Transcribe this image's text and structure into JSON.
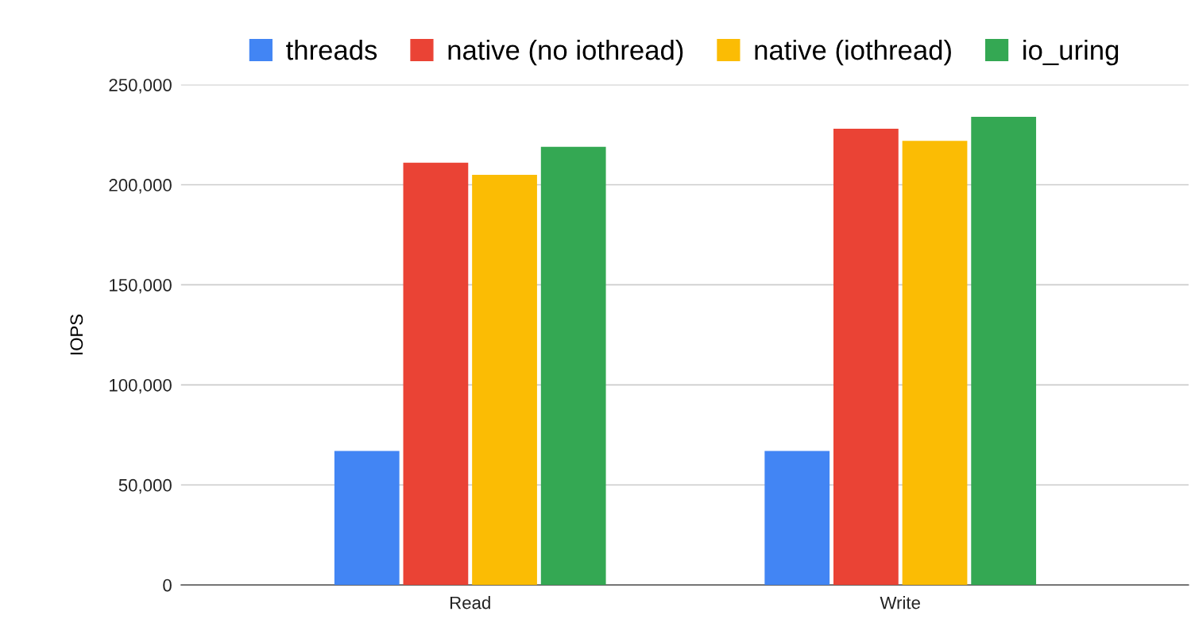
{
  "chart_data": {
    "type": "bar",
    "ylabel": "IOPS",
    "categories": [
      "Read",
      "Write"
    ],
    "series": [
      {
        "name": "threads",
        "color": "#4285f4",
        "values": [
          67000,
          67000
        ]
      },
      {
        "name": "native (no iothread)",
        "color": "#ea4335",
        "values": [
          211000,
          228000
        ]
      },
      {
        "name": "native (iothread)",
        "color": "#fbbc04",
        "values": [
          205000,
          222000
        ]
      },
      {
        "name": "io_uring",
        "color": "#34a853",
        "values": [
          219000,
          234000
        ]
      }
    ],
    "ylim": [
      0,
      250000
    ],
    "yticks": [
      {
        "value": 0,
        "label": "0"
      },
      {
        "value": 50000,
        "label": "50,000"
      },
      {
        "value": 100000,
        "label": "100,000"
      },
      {
        "value": 150000,
        "label": "150,000"
      },
      {
        "value": 200000,
        "label": "200,000"
      },
      {
        "value": 250000,
        "label": "250,000"
      }
    ],
    "grid": "y",
    "legend": "top"
  }
}
